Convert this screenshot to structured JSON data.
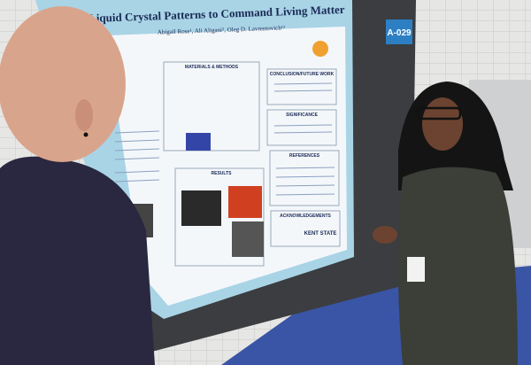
{
  "poster": {
    "board_label": "A-029",
    "title": "Liquid Crystal Patterns to Command Living Matter",
    "authors": "Abigail Rose¹, Ali Aligani², Oleg D. Lavrentovich¹²",
    "sections": [
      "MATERIALS & METHODS",
      "CONCLUSION/FUTURE WORK",
      "SIGNIFICANCE",
      "RESULTS",
      "REFERENCES",
      "ACKNOWLEDGEMENTS"
    ],
    "logo": "KENT STATE"
  }
}
